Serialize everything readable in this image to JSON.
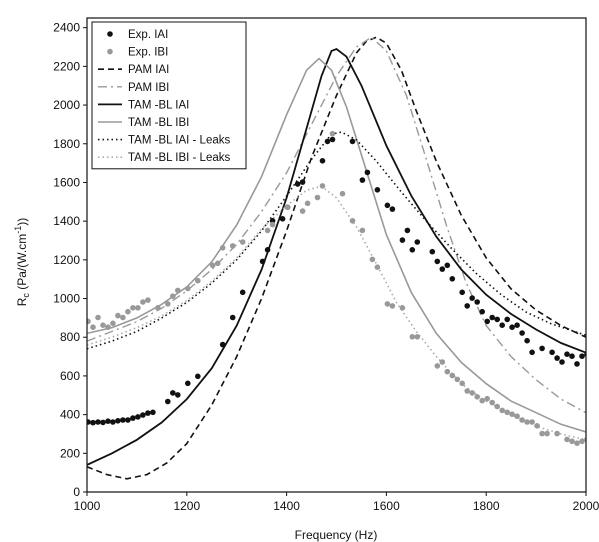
{
  "chart_data": {
    "type": "line",
    "title": "",
    "xlabel": "Frequency (Hz)",
    "ylabel_main": "R",
    "ylabel_sub": "c",
    "ylabel_rest": " (Pa/(W.cm",
    "ylabel_sup": "-1",
    "ylabel_end": "))",
    "xlim": [
      1000,
      2000
    ],
    "ylim": [
      0,
      2450
    ],
    "x_ticks": [
      1000,
      1200,
      1400,
      1600,
      1800,
      2000
    ],
    "x_tick_labels": [
      "1000",
      "1200",
      "1400",
      "1600",
      "1800",
      "2000"
    ],
    "y_ticks": [
      0,
      200,
      400,
      600,
      800,
      1000,
      1200,
      1400,
      1600,
      1800,
      2000,
      2200,
      2400
    ],
    "y_tick_labels": [
      "0",
      "200",
      "400",
      "600",
      "800",
      "1000",
      "1200",
      "1400",
      "1600",
      "1800",
      "2000",
      "2200",
      "2400"
    ],
    "grid": false,
    "legend_position": "top-left",
    "colors": {
      "black": "#111111",
      "gray": "#999999",
      "gray_light": "#aaaaaa"
    },
    "series": [
      {
        "name": "Exp. IAI",
        "kind": "scatter",
        "color": "#111111",
        "points": [
          [
            1002,
            362
          ],
          [
            1012,
            358
          ],
          [
            1022,
            362
          ],
          [
            1032,
            360
          ],
          [
            1042,
            366
          ],
          [
            1052,
            362
          ],
          [
            1062,
            368
          ],
          [
            1072,
            372
          ],
          [
            1082,
            372
          ],
          [
            1092,
            382
          ],
          [
            1102,
            388
          ],
          [
            1112,
            398
          ],
          [
            1122,
            408
          ],
          [
            1132,
            412
          ],
          [
            1162,
            468
          ],
          [
            1172,
            512
          ],
          [
            1182,
            502
          ],
          [
            1202,
            562
          ],
          [
            1222,
            598
          ],
          [
            1272,
            762
          ],
          [
            1292,
            902
          ],
          [
            1312,
            1032
          ],
          [
            1352,
            1192
          ],
          [
            1362,
            1252
          ],
          [
            1372,
            1402
          ],
          [
            1392,
            1412
          ],
          [
            1402,
            1472
          ],
          [
            1422,
            1592
          ],
          [
            1432,
            1602
          ],
          [
            1472,
            1712
          ],
          [
            1482,
            1812
          ],
          [
            1492,
            1822
          ],
          [
            1532,
            1812
          ],
          [
            1552,
            1612
          ],
          [
            1562,
            1652
          ],
          [
            1582,
            1562
          ],
          [
            1602,
            1482
          ],
          [
            1612,
            1462
          ],
          [
            1632,
            1302
          ],
          [
            1642,
            1352
          ],
          [
            1652,
            1252
          ],
          [
            1662,
            1292
          ],
          [
            1692,
            1242
          ],
          [
            1702,
            1192
          ],
          [
            1712,
            1152
          ],
          [
            1722,
            1172
          ],
          [
            1732,
            1102
          ],
          [
            1752,
            1032
          ],
          [
            1762,
            962
          ],
          [
            1772,
            1002
          ],
          [
            1782,
            982
          ],
          [
            1792,
            932
          ],
          [
            1802,
            882
          ],
          [
            1812,
            902
          ],
          [
            1822,
            892
          ],
          [
            1832,
            862
          ],
          [
            1842,
            892
          ],
          [
            1852,
            852
          ],
          [
            1862,
            862
          ],
          [
            1872,
            822
          ],
          [
            1882,
            782
          ],
          [
            1892,
            722
          ],
          [
            1912,
            742
          ],
          [
            1932,
            722
          ],
          [
            1942,
            692
          ],
          [
            1952,
            672
          ],
          [
            1962,
            712
          ],
          [
            1972,
            702
          ],
          [
            1982,
            662
          ],
          [
            1992,
            702
          ],
          [
            2002,
            712
          ]
        ]
      },
      {
        "name": "Exp. IBI",
        "kind": "scatter",
        "color": "#999999",
        "points": [
          [
            1002,
            882
          ],
          [
            1012,
            852
          ],
          [
            1022,
            902
          ],
          [
            1032,
            862
          ],
          [
            1042,
            852
          ],
          [
            1052,
            872
          ],
          [
            1062,
            912
          ],
          [
            1072,
            902
          ],
          [
            1082,
            932
          ],
          [
            1092,
            952
          ],
          [
            1102,
            952
          ],
          [
            1112,
            982
          ],
          [
            1122,
            992
          ],
          [
            1142,
            952
          ],
          [
            1162,
            972
          ],
          [
            1172,
            1012
          ],
          [
            1182,
            1042
          ],
          [
            1202,
            1052
          ],
          [
            1222,
            1092
          ],
          [
            1252,
            1172
          ],
          [
            1262,
            1182
          ],
          [
            1272,
            1262
          ],
          [
            1292,
            1272
          ],
          [
            1312,
            1292
          ],
          [
            1362,
            1352
          ],
          [
            1372,
            1382
          ],
          [
            1402,
            1472
          ],
          [
            1432,
            1452
          ],
          [
            1442,
            1492
          ],
          [
            1462,
            1522
          ],
          [
            1472,
            1582
          ],
          [
            1492,
            1852
          ],
          [
            1512,
            1542
          ],
          [
            1532,
            1402
          ],
          [
            1552,
            1352
          ],
          [
            1572,
            1202
          ],
          [
            1582,
            1162
          ],
          [
            1602,
            972
          ],
          [
            1612,
            962
          ],
          [
            1632,
            952
          ],
          [
            1652,
            802
          ],
          [
            1662,
            802
          ],
          [
            1702,
            652
          ],
          [
            1712,
            672
          ],
          [
            1722,
            622
          ],
          [
            1732,
            602
          ],
          [
            1742,
            582
          ],
          [
            1752,
            562
          ],
          [
            1762,
            522
          ],
          [
            1772,
            512
          ],
          [
            1782,
            492
          ],
          [
            1792,
            472
          ],
          [
            1802,
            482
          ],
          [
            1812,
            462
          ],
          [
            1822,
            442
          ],
          [
            1832,
            422
          ],
          [
            1842,
            412
          ],
          [
            1852,
            402
          ],
          [
            1862,
            392
          ],
          [
            1872,
            372
          ],
          [
            1882,
            362
          ],
          [
            1892,
            362
          ],
          [
            1902,
            342
          ],
          [
            1912,
            302
          ],
          [
            1922,
            302
          ],
          [
            1942,
            302
          ],
          [
            1962,
            272
          ],
          [
            1972,
            262
          ],
          [
            1982,
            252
          ],
          [
            1992,
            262
          ],
          [
            2002,
            272
          ]
        ]
      },
      {
        "name": "PAM IAI",
        "kind": "line",
        "color": "#111111",
        "dash": "6,4",
        "width": 1.6,
        "points": [
          [
            1000,
            130
          ],
          [
            1040,
            90
          ],
          [
            1080,
            68
          ],
          [
            1120,
            90
          ],
          [
            1160,
            150
          ],
          [
            1200,
            250
          ],
          [
            1250,
            450
          ],
          [
            1300,
            700
          ],
          [
            1350,
            1000
          ],
          [
            1400,
            1350
          ],
          [
            1450,
            1730
          ],
          [
            1500,
            2050
          ],
          [
            1540,
            2270
          ],
          [
            1560,
            2330
          ],
          [
            1580,
            2350
          ],
          [
            1600,
            2320
          ],
          [
            1630,
            2180
          ],
          [
            1660,
            1970
          ],
          [
            1700,
            1710
          ],
          [
            1750,
            1430
          ],
          [
            1800,
            1210
          ],
          [
            1850,
            1050
          ],
          [
            1900,
            940
          ],
          [
            1950,
            860
          ],
          [
            2000,
            800
          ]
        ]
      },
      {
        "name": "PAM IBI",
        "kind": "line",
        "color": "#999999",
        "dash": "9,4,2,4",
        "width": 1.4,
        "points": [
          [
            1000,
            780
          ],
          [
            1050,
            830
          ],
          [
            1100,
            880
          ],
          [
            1150,
            950
          ],
          [
            1200,
            1040
          ],
          [
            1250,
            1150
          ],
          [
            1300,
            1280
          ],
          [
            1350,
            1450
          ],
          [
            1400,
            1650
          ],
          [
            1450,
            1900
          ],
          [
            1500,
            2150
          ],
          [
            1540,
            2300
          ],
          [
            1570,
            2350
          ],
          [
            1600,
            2280
          ],
          [
            1640,
            2050
          ],
          [
            1680,
            1720
          ],
          [
            1720,
            1380
          ],
          [
            1760,
            1080
          ],
          [
            1800,
            860
          ],
          [
            1850,
            700
          ],
          [
            1900,
            580
          ],
          [
            1950,
            480
          ],
          [
            2000,
            410
          ]
        ]
      },
      {
        "name": "TAM -BL IAI",
        "kind": "line",
        "color": "#111111",
        "dash": "",
        "width": 1.8,
        "points": [
          [
            1000,
            140
          ],
          [
            1050,
            200
          ],
          [
            1100,
            270
          ],
          [
            1150,
            360
          ],
          [
            1200,
            480
          ],
          [
            1250,
            640
          ],
          [
            1300,
            860
          ],
          [
            1350,
            1150
          ],
          [
            1400,
            1520
          ],
          [
            1440,
            1880
          ],
          [
            1470,
            2150
          ],
          [
            1490,
            2280
          ],
          [
            1500,
            2290
          ],
          [
            1520,
            2250
          ],
          [
            1550,
            2100
          ],
          [
            1600,
            1790
          ],
          [
            1650,
            1530
          ],
          [
            1700,
            1320
          ],
          [
            1750,
            1150
          ],
          [
            1800,
            1020
          ],
          [
            1850,
            920
          ],
          [
            1900,
            840
          ],
          [
            1950,
            770
          ],
          [
            2000,
            720
          ]
        ]
      },
      {
        "name": "TAM -BL IBI",
        "kind": "line",
        "color": "#999999",
        "dash": "",
        "width": 1.6,
        "points": [
          [
            1000,
            820
          ],
          [
            1050,
            850
          ],
          [
            1100,
            900
          ],
          [
            1150,
            970
          ],
          [
            1200,
            1060
          ],
          [
            1250,
            1190
          ],
          [
            1300,
            1380
          ],
          [
            1350,
            1630
          ],
          [
            1400,
            1950
          ],
          [
            1440,
            2180
          ],
          [
            1465,
            2240
          ],
          [
            1490,
            2180
          ],
          [
            1520,
            1990
          ],
          [
            1560,
            1660
          ],
          [
            1600,
            1330
          ],
          [
            1650,
            1030
          ],
          [
            1700,
            820
          ],
          [
            1750,
            670
          ],
          [
            1800,
            560
          ],
          [
            1850,
            470
          ],
          [
            1900,
            410
          ],
          [
            1950,
            350
          ],
          [
            2000,
            310
          ]
        ]
      },
      {
        "name": "TAM -BL IAI - Leaks",
        "kind": "line",
        "color": "#111111",
        "dash": "1.5,3",
        "width": 1.6,
        "points": [
          [
            1000,
            740
          ],
          [
            1050,
            780
          ],
          [
            1100,
            830
          ],
          [
            1150,
            900
          ],
          [
            1200,
            980
          ],
          [
            1250,
            1080
          ],
          [
            1300,
            1200
          ],
          [
            1350,
            1350
          ],
          [
            1400,
            1530
          ],
          [
            1450,
            1720
          ],
          [
            1490,
            1850
          ],
          [
            1510,
            1860
          ],
          [
            1540,
            1820
          ],
          [
            1580,
            1710
          ],
          [
            1630,
            1550
          ],
          [
            1680,
            1400
          ],
          [
            1730,
            1260
          ],
          [
            1780,
            1130
          ],
          [
            1830,
            1020
          ],
          [
            1880,
            930
          ],
          [
            1930,
            870
          ],
          [
            2000,
            810
          ]
        ]
      },
      {
        "name": "TAM -BL IBI - Leaks",
        "kind": "line",
        "color": "#aaaaaa",
        "dash": "1.5,3",
        "width": 1.6,
        "points": [
          [
            1000,
            760
          ],
          [
            1050,
            800
          ],
          [
            1100,
            850
          ],
          [
            1150,
            910
          ],
          [
            1200,
            990
          ],
          [
            1250,
            1090
          ],
          [
            1300,
            1210
          ],
          [
            1350,
            1360
          ],
          [
            1400,
            1480
          ],
          [
            1440,
            1560
          ],
          [
            1470,
            1580
          ],
          [
            1500,
            1520
          ],
          [
            1540,
            1370
          ],
          [
            1580,
            1180
          ],
          [
            1620,
            980
          ],
          [
            1660,
            830
          ],
          [
            1700,
            700
          ],
          [
            1750,
            560
          ],
          [
            1800,
            470
          ],
          [
            1850,
            400
          ],
          [
            1900,
            340
          ],
          [
            1950,
            300
          ],
          [
            2000,
            270
          ]
        ]
      }
    ]
  }
}
